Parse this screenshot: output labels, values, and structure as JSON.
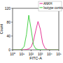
{
  "chart_data": {
    "type": "line",
    "x_label": "FITC-A",
    "y_label": "Count",
    "x": [
      1,
      2,
      3,
      6,
      10,
      18,
      32,
      56,
      100,
      178,
      316,
      562,
      1000,
      1778,
      3162,
      5623,
      10000,
      17783,
      31623,
      56234,
      100000
    ],
    "series": [
      {
        "name": "ANKH",
        "color": "#e0218a",
        "values": [
          0,
          0,
          0,
          0,
          0,
          0,
          1,
          3,
          8,
          25,
          55,
          82,
          60,
          20,
          5,
          1,
          0,
          0,
          0,
          0,
          0
        ]
      },
      {
        "name": "Isotype control",
        "color": "#33cc33",
        "values": [
          0,
          0,
          0,
          0,
          2,
          10,
          45,
          100,
          60,
          15,
          3,
          1,
          0,
          0,
          0,
          0,
          0,
          0,
          0,
          0,
          0
        ]
      }
    ],
    "log": "x",
    "xlim": [
      1,
      100000
    ],
    "xticks": [
      {
        "value": 1,
        "label": "10⁰"
      },
      {
        "value": 10,
        "label": "10¹"
      },
      {
        "value": 100,
        "label": "10²"
      },
      {
        "value": 1000,
        "label": "10³"
      },
      {
        "value": 10000,
        "label": "10⁴"
      },
      {
        "value": 100000,
        "label": "10⁵"
      }
    ],
    "ylim": [
      0,
      120
    ],
    "yticks": [
      0,
      40,
      80,
      120
    ],
    "legend": "top-right"
  }
}
